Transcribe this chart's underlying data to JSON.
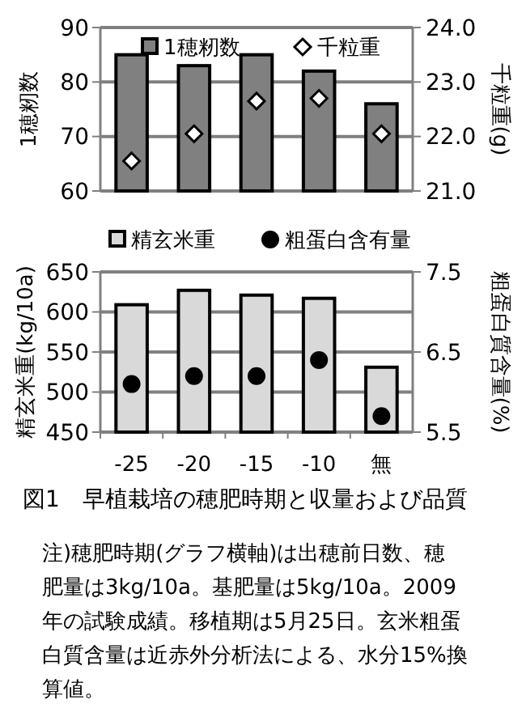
{
  "chart_data": [
    {
      "type": "bar",
      "categories": [
        null,
        null,
        null,
        null,
        null
      ],
      "ylabel": "1穂籾数",
      "y2label": "千粒重(g)",
      "ylim": [
        60,
        90
      ],
      "yticks": [
        60,
        70,
        80,
        90
      ],
      "y2lim": [
        21,
        24
      ],
      "y2ticks": [
        {
          "value": 21,
          "label": "21.0"
        },
        {
          "value": 22,
          "label": "22.0"
        },
        {
          "value": 23,
          "label": "23.0"
        },
        {
          "value": 24,
          "label": "24.0"
        }
      ],
      "grid": "y",
      "legend": "top",
      "tick_labels": "y",
      "series": [
        {
          "name": "1穂籾数",
          "color": "#808080",
          "values": [
            85,
            83,
            85,
            82,
            76
          ]
        },
        {
          "name": "千粒重",
          "type": "scatter",
          "axis": "y2",
          "marker": "diamond",
          "color": "#ffffff",
          "values": [
            21.55,
            22.05,
            22.65,
            22.7,
            22.05
          ]
        }
      ]
    },
    {
      "type": "bar",
      "categories": [
        "-25",
        "-20",
        "-15",
        "-10",
        "無"
      ],
      "ylabel": "精玄米重(kg/10a)",
      "y2label": "粗蛋白質含量(%)",
      "ylim": [
        450,
        650
      ],
      "yticks": [
        450,
        500,
        550,
        600,
        650
      ],
      "y2lim": [
        5.5,
        7.5
      ],
      "y2ticks": [
        5.5,
        6.5,
        7.5
      ],
      "grid": "y",
      "legend": "top",
      "series": [
        {
          "name": "精玄米重",
          "color": "#d9d9d9",
          "values": [
            609,
            627,
            621,
            617,
            531
          ]
        },
        {
          "name": "粗蛋白含有量",
          "type": "scatter",
          "axis": "y2",
          "marker": "circle",
          "color": "#000000",
          "values": [
            6.1,
            6.2,
            6.2,
            6.4,
            5.7
          ]
        }
      ],
      "annotations": [
        "図1　早植栽培の穂肥時期と収量および品質",
        "注)穂肥時期(グラフ横軸)は出穂前日数、穂肥量は3kg/10a。基肥量は5kg/10a。2009年の試験成績。移植期は5月25日。玄米粗蛋白質含量は近赤外分析法による、水分15%換算値。"
      ]
    }
  ]
}
